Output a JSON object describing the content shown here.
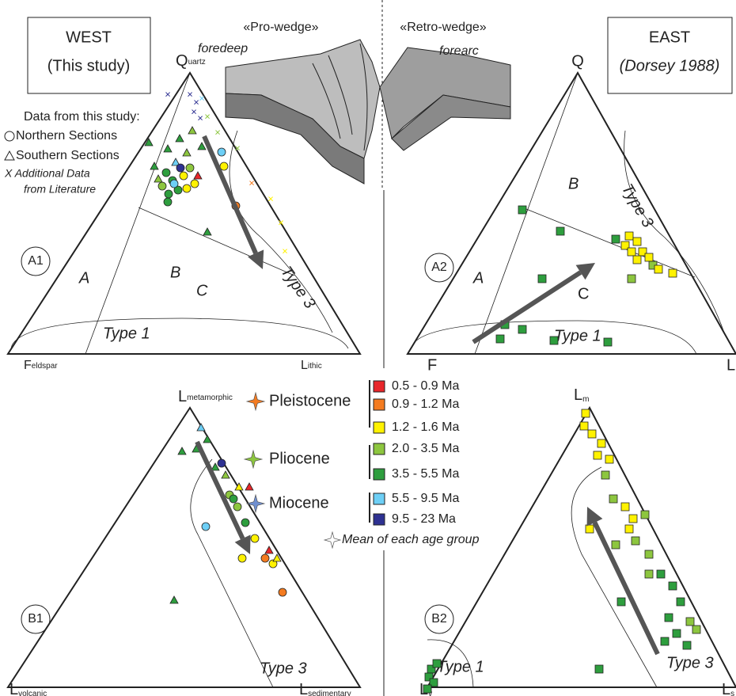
{
  "header": {
    "west": "WEST",
    "west_sub": "(This study)",
    "east": "EAST",
    "east_sub": "(Dorsey 1988)"
  },
  "wedge": {
    "pro": "«Pro-wedge»",
    "retro": "«Retro-wedge»",
    "foredeep": "foredeep",
    "forearc": "forearc"
  },
  "panel_a1": {
    "id": "A1",
    "apex": [
      "Q",
      "uartz"
    ],
    "left": [
      "F",
      "eldspar"
    ],
    "right": [
      "L",
      "ithic"
    ],
    "regions": [
      "A",
      "B",
      "C"
    ],
    "type1": "Type 1",
    "type3": "Type 3"
  },
  "panel_a2": {
    "id": "A2",
    "apex": "Q",
    "left": "F",
    "right": "L",
    "regions": [
      "A",
      "B",
      "C"
    ],
    "type1": "Type 1",
    "type3": "Type 3"
  },
  "panel_b1": {
    "id": "B1",
    "apex": [
      "L",
      "metamorphic"
    ],
    "left": [
      "L",
      "volcanic"
    ],
    "right": [
      "L",
      "sedimentary"
    ],
    "type3": "Type 3"
  },
  "panel_b2": {
    "id": "B2",
    "apex": [
      "L",
      "m"
    ],
    "left": [
      "L",
      "v"
    ],
    "right": [
      "L",
      "s"
    ],
    "type1": "Type 1",
    "type3": "Type 3"
  },
  "data_legend": {
    "title": "Data from this study:",
    "items": [
      "Northern Sections",
      "Southern Sections",
      "X Additional Data",
      "from Literature"
    ]
  },
  "age_legend": {
    "epochs": [
      "Pleistocene",
      "Pliocene",
      "Miocene"
    ],
    "ages": [
      {
        "label": "0.5 - 0.9 Ma",
        "color": "#e8262a"
      },
      {
        "label": "0.9 - 1.2 Ma",
        "color": "#f47b20"
      },
      {
        "label": "1.2 - 1.6 Ma",
        "color": "#fff200"
      },
      {
        "label": "2.0 - 3.5 Ma",
        "color": "#8dc63f"
      },
      {
        "label": "3.5 - 5.5 Ma",
        "color": "#2e9e3e"
      },
      {
        "label": "5.5 - 9.5 Ma",
        "color": "#6dcff6"
      },
      {
        "label": "9.5 - 23 Ma",
        "color": "#2e3192"
      }
    ],
    "mean": "Mean of each age group"
  }
}
